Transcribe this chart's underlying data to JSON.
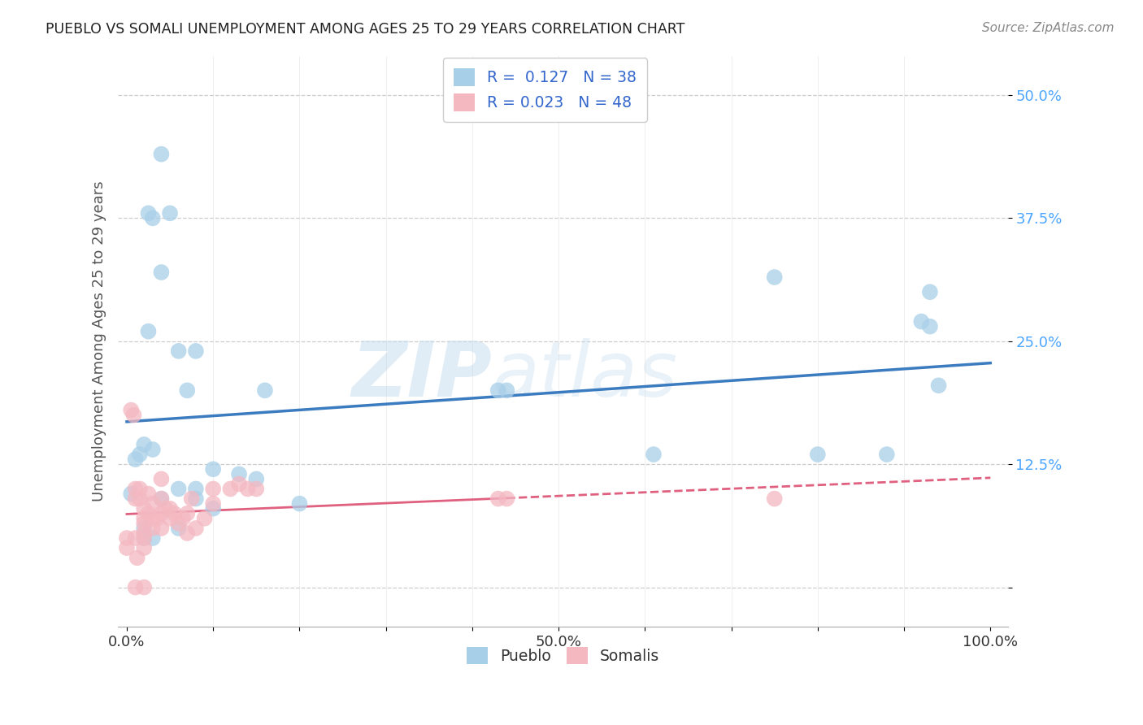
{
  "title": "PUEBLO VS SOMALI UNEMPLOYMENT AMONG AGES 25 TO 29 YEARS CORRELATION CHART",
  "source": "Source: ZipAtlas.com",
  "ylabel": "Unemployment Among Ages 25 to 29 years",
  "xlim": [
    -0.01,
    1.02
  ],
  "ylim": [
    -0.04,
    0.54
  ],
  "yticks": [
    0.0,
    0.125,
    0.25,
    0.375,
    0.5
  ],
  "yticklabels": [
    "",
    "12.5%",
    "25.0%",
    "37.5%",
    "50.0%"
  ],
  "pueblo_color": "#a8cfe8",
  "somali_color": "#f4b8c1",
  "pueblo_line_color": "#3b7bbf",
  "somali_line_color": "#e06080",
  "pueblo_R": 0.127,
  "pueblo_N": 38,
  "somali_R": 0.023,
  "somali_N": 48,
  "pueblo_x": [
    0.005,
    0.01,
    0.015,
    0.02,
    0.025,
    0.03,
    0.04,
    0.05,
    0.025,
    0.04,
    0.06,
    0.08,
    0.1,
    0.13,
    0.16,
    0.2,
    0.03,
    0.04,
    0.06,
    0.07,
    0.08,
    0.1,
    0.43,
    0.44,
    0.61,
    0.75,
    0.8,
    0.88,
    0.92,
    0.93,
    0.93,
    0.94,
    0.02,
    0.02,
    0.03,
    0.06,
    0.08,
    0.15
  ],
  "pueblo_y": [
    0.095,
    0.13,
    0.135,
    0.145,
    0.38,
    0.375,
    0.44,
    0.38,
    0.26,
    0.32,
    0.24,
    0.24,
    0.12,
    0.115,
    0.2,
    0.085,
    0.14,
    0.09,
    0.1,
    0.2,
    0.1,
    0.08,
    0.2,
    0.2,
    0.135,
    0.315,
    0.135,
    0.135,
    0.27,
    0.265,
    0.3,
    0.205,
    0.06,
    0.05,
    0.05,
    0.06,
    0.09,
    0.11
  ],
  "somali_x": [
    0.0,
    0.0,
    0.005,
    0.008,
    0.01,
    0.01,
    0.01,
    0.012,
    0.015,
    0.015,
    0.02,
    0.02,
    0.02,
    0.02,
    0.02,
    0.02,
    0.025,
    0.025,
    0.03,
    0.03,
    0.03,
    0.035,
    0.04,
    0.04,
    0.04,
    0.045,
    0.05,
    0.05,
    0.055,
    0.06,
    0.065,
    0.07,
    0.07,
    0.075,
    0.08,
    0.09,
    0.1,
    0.1,
    0.12,
    0.13,
    0.14,
    0.15,
    0.43,
    0.44,
    0.75,
    0.01,
    0.02,
    0.04
  ],
  "somali_y": [
    0.05,
    0.04,
    0.18,
    0.175,
    0.1,
    0.09,
    0.05,
    0.03,
    0.1,
    0.09,
    0.08,
    0.07,
    0.065,
    0.055,
    0.05,
    0.04,
    0.095,
    0.075,
    0.085,
    0.07,
    0.06,
    0.07,
    0.09,
    0.075,
    0.06,
    0.08,
    0.08,
    0.07,
    0.075,
    0.065,
    0.07,
    0.075,
    0.055,
    0.09,
    0.06,
    0.07,
    0.1,
    0.085,
    0.1,
    0.105,
    0.1,
    0.1,
    0.09,
    0.09,
    0.09,
    0.0,
    0.0,
    0.11
  ],
  "watermark_zip": "ZIP",
  "watermark_atlas": "atlas",
  "background_color": "#ffffff",
  "grid_color": "#c8c8c8"
}
